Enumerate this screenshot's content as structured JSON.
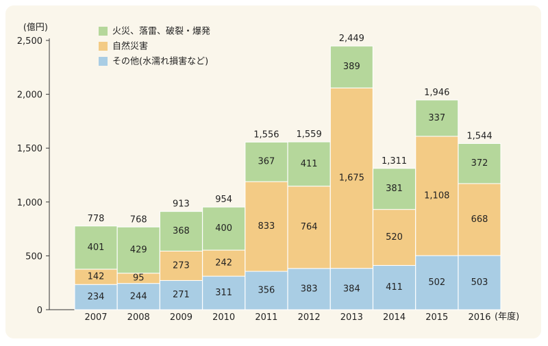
{
  "chart_data": {
    "type": "bar",
    "stacked": true,
    "y_unit": "(億円)",
    "x_unit": "(年度)",
    "ylim": [
      0,
      2500
    ],
    "yticks": [
      0,
      500,
      1000,
      1500,
      2000,
      2500
    ],
    "ytick_labels": [
      "0",
      "500",
      "1,000",
      "1,500",
      "2,000",
      "2,500"
    ],
    "categories": [
      "2007",
      "2008",
      "2009",
      "2010",
      "2011",
      "2012",
      "2013",
      "2014",
      "2015",
      "2016"
    ],
    "series": [
      {
        "name": "その他(水濡れ損害など)",
        "color": "#a9cde4",
        "values": [
          234,
          244,
          271,
          311,
          356,
          383,
          384,
          411,
          502,
          503
        ]
      },
      {
        "name": "自然災害",
        "color": "#f3cb85",
        "values": [
          142,
          95,
          273,
          242,
          833,
          764,
          1675,
          520,
          1108,
          668
        ]
      },
      {
        "name": "火災、落雷、破裂・爆発",
        "color": "#b5d79b",
        "values": [
          401,
          429,
          368,
          400,
          367,
          411,
          389,
          381,
          337,
          372
        ]
      }
    ],
    "totals": [
      778,
      768,
      913,
      954,
      1556,
      1559,
      2449,
      1311,
      1946,
      1544
    ],
    "value_labels": [
      [
        "234",
        "244",
        "271",
        "311",
        "356",
        "383",
        "384",
        "411",
        "502",
        "503"
      ],
      [
        "142",
        "95",
        "273",
        "242",
        "833",
        "764",
        "1,675",
        "520",
        "1,108",
        "668"
      ],
      [
        "401",
        "429",
        "368",
        "400",
        "367",
        "411",
        "389",
        "381",
        "337",
        "372"
      ]
    ],
    "total_labels": [
      "778",
      "768",
      "913",
      "954",
      "1,556",
      "1,559",
      "2,449",
      "1,311",
      "1,946",
      "1,544"
    ],
    "legend_order": [
      2,
      1,
      0
    ],
    "legend_position": "top-left",
    "grid": false
  }
}
